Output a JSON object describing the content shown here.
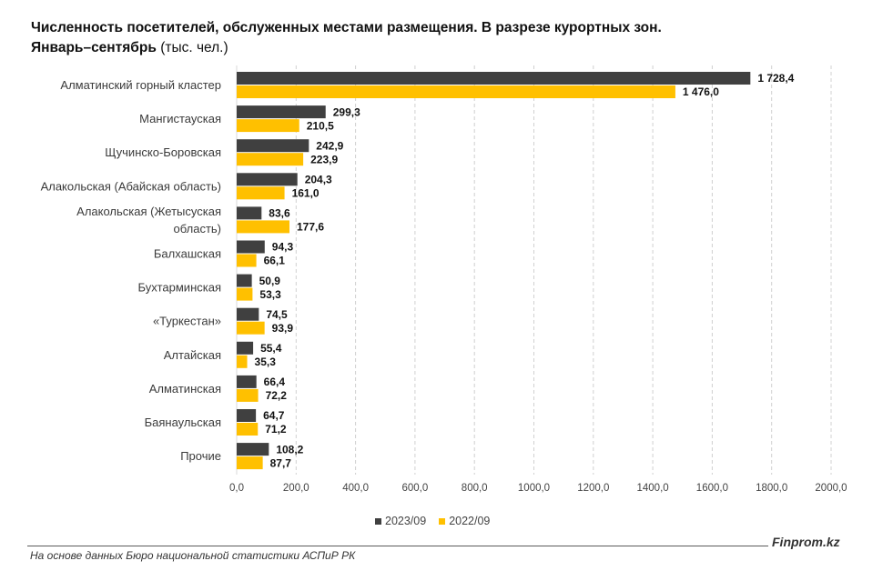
{
  "header": {
    "title_line1": "Численность посетителей, обслуженных местами размещения. В разрезе курортных зон.",
    "title_line2_bold": "Январь–сентябрь",
    "title_line2_unit": "(тыс. чел.)"
  },
  "chart_data": {
    "type": "bar",
    "orientation": "horizontal",
    "categories": [
      [
        "Алматинский горный кластер"
      ],
      [
        "Мангистауская"
      ],
      [
        "Щучинско-Боровская"
      ],
      [
        "Алакольская (Абайская область)"
      ],
      [
        "Алакольская (Жетысуская",
        "область)"
      ],
      [
        "Балхашская"
      ],
      [
        "Бухтарминская"
      ],
      [
        "«Туркестан»"
      ],
      [
        "Алтайская"
      ],
      [
        "Алматинская"
      ],
      [
        "Баянаульская"
      ],
      [
        "Прочие"
      ]
    ],
    "series": [
      {
        "name": "2023/09",
        "color": "#404040",
        "values": [
          1728.4,
          299.3,
          242.9,
          204.3,
          83.6,
          94.3,
          50.9,
          74.5,
          55.4,
          66.4,
          64.7,
          108.2
        ],
        "labels": [
          "1 728,4",
          "299,3",
          "242,9",
          "204,3",
          "83,6",
          "94,3",
          "50,9",
          "74,5",
          "55,4",
          "66,4",
          "64,7",
          "108,2"
        ]
      },
      {
        "name": "2022/09",
        "color": "#FFC000",
        "values": [
          1476.0,
          210.5,
          223.9,
          161.0,
          177.6,
          66.1,
          53.3,
          93.9,
          35.3,
          72.2,
          71.2,
          87.7
        ],
        "labels": [
          "1 476,0",
          "210,5",
          "223,9",
          "161,0",
          "177,6",
          "66,1",
          "53,3",
          "93,9",
          "35,3",
          "72,2",
          "71,2",
          "87,7"
        ]
      }
    ],
    "xlim": [
      0,
      2000
    ],
    "xticks": [
      0,
      200,
      400,
      600,
      800,
      1000,
      1200,
      1400,
      1600,
      1800,
      2000
    ],
    "xtick_labels": [
      "0,0",
      "200,0",
      "400,0",
      "600,0",
      "800,0",
      "1000,0",
      "1200,0",
      "1400,0",
      "1600,0",
      "1800,0",
      "2000,0"
    ],
    "grid": "vertical-dashed",
    "legend_position": "bottom-center"
  },
  "legend": {
    "series1_label": "2023/09",
    "series2_label": "2022/09",
    "series1_color": "#404040",
    "series2_color": "#FFC000"
  },
  "footer": {
    "brand": "Finprom.kz",
    "source": "На основе данных Бюро национальной статистики АСПиР РК"
  }
}
